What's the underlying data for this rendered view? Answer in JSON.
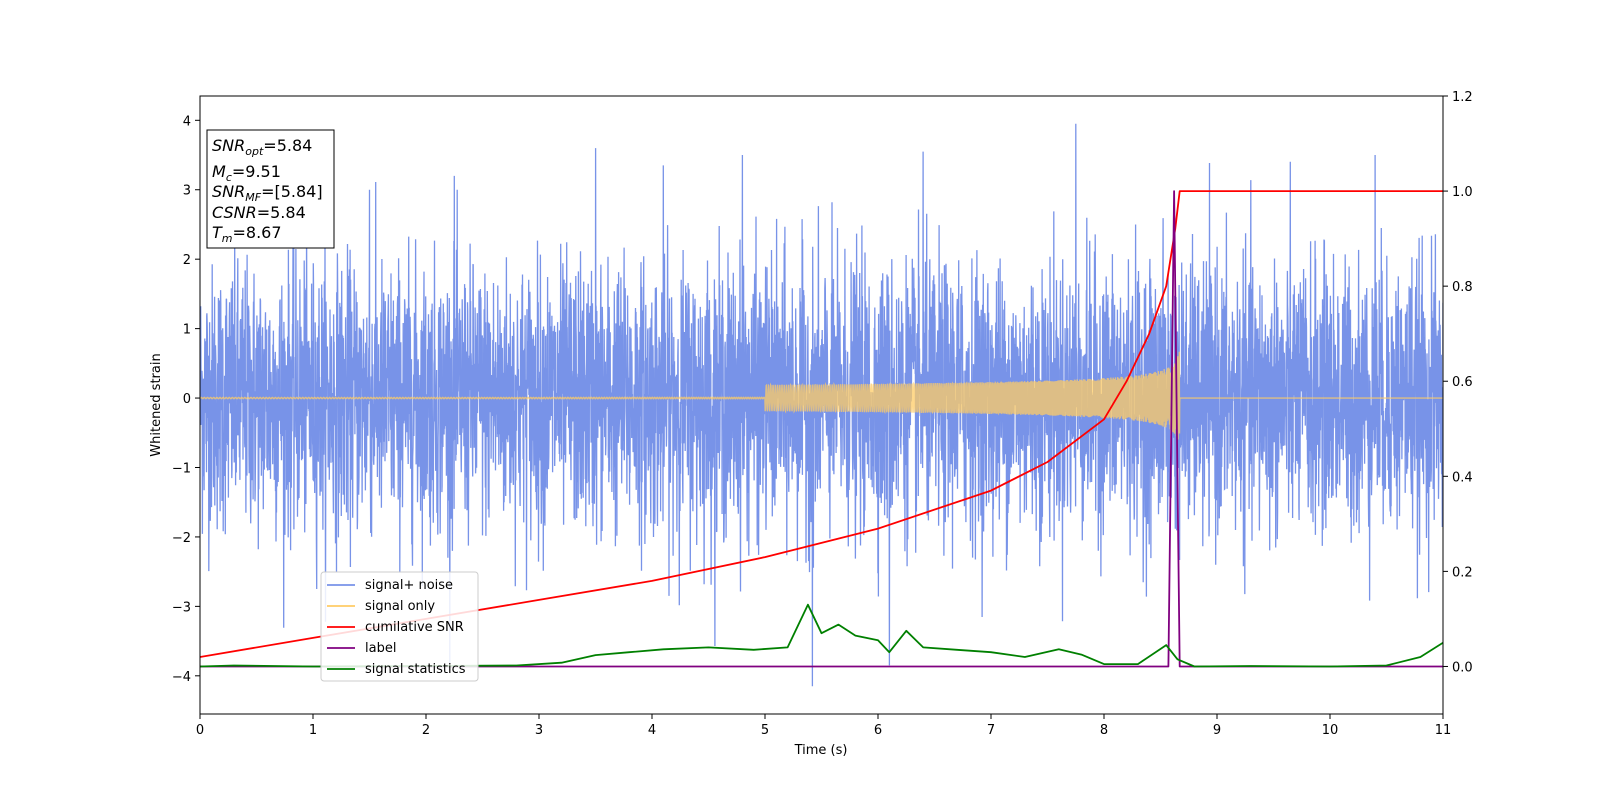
{
  "chart_data": {
    "type": "line",
    "xlabel": "Time (s)",
    "ylabel": "Whitened strain",
    "xlim": [
      0,
      11
    ],
    "ylim_left": [
      -4.55,
      4.35
    ],
    "ylim_right": [
      -0.1,
      1.2
    ],
    "x_ticks": [
      0,
      1,
      2,
      3,
      4,
      5,
      6,
      7,
      8,
      9,
      10,
      11
    ],
    "y_ticks_left": [
      -4,
      -3,
      -2,
      -1,
      0,
      1,
      2,
      3,
      4
    ],
    "y_ticks_right": [
      "0.0",
      "0.2",
      "0.4",
      "0.6",
      "0.8",
      "1.0",
      "1.2"
    ],
    "y_ticks_right_values": [
      0.0,
      0.2,
      0.4,
      0.6,
      0.8,
      1.0,
      1.2
    ],
    "legend_position": "lower-left",
    "info_box": {
      "snr_opt": "=5.84",
      "mc": "=9.51",
      "snr_mf": "=[5.84]",
      "csnr": "=5.84",
      "tm": "=8.67",
      "labels": {
        "snr_main": "SNR",
        "snr_opt_sub": "opt",
        "m_main": "M",
        "m_sub": "c",
        "snr_mf_sub": "MF",
        "csnr_main": "CSNR",
        "t_main": "T",
        "t_sub": "m"
      }
    },
    "series": [
      {
        "name": "signal+ noise",
        "color": "#7893e8",
        "axis": "left",
        "kind": "noise",
        "sigma": 0.95,
        "x_range": [
          0,
          11
        ],
        "note_peaks": [
          [
            1.5,
            3.0
          ],
          [
            2.25,
            3.2
          ],
          [
            3.5,
            3.6
          ],
          [
            4.1,
            3.35
          ],
          [
            4.8,
            3.5
          ],
          [
            6.4,
            3.55
          ],
          [
            7.75,
            3.95
          ],
          [
            10.4,
            3.5
          ],
          [
            5.42,
            -4.15
          ],
          [
            6.1,
            -3.85
          ]
        ]
      },
      {
        "name": "signal only",
        "color": "#ffcc66",
        "axis": "left",
        "kind": "chirp",
        "t_merge": 8.67,
        "amplitude_at_merge": 0.7
      },
      {
        "name": "cumilative SNR",
        "color": "#ff0000",
        "axis": "right",
        "points": [
          [
            0,
            0.02
          ],
          [
            1,
            0.06
          ],
          [
            2,
            0.1
          ],
          [
            3,
            0.14
          ],
          [
            4,
            0.18
          ],
          [
            5,
            0.23
          ],
          [
            6,
            0.29
          ],
          [
            7,
            0.37
          ],
          [
            7.5,
            0.43
          ],
          [
            8,
            0.52
          ],
          [
            8.2,
            0.6
          ],
          [
            8.4,
            0.7
          ],
          [
            8.55,
            0.8
          ],
          [
            8.63,
            0.92
          ],
          [
            8.67,
            1.0
          ],
          [
            11,
            1.0
          ]
        ]
      },
      {
        "name": "label",
        "color": "#800080",
        "axis": "right",
        "points": [
          [
            0,
            0
          ],
          [
            8.57,
            0
          ],
          [
            8.62,
            1.0
          ],
          [
            8.67,
            0
          ],
          [
            11,
            0
          ]
        ]
      },
      {
        "name": "signal statistics",
        "color": "#008000",
        "axis": "right",
        "points": [
          [
            0,
            0.0
          ],
          [
            0.3,
            0.002
          ],
          [
            1,
            0.0
          ],
          [
            2,
            0.001
          ],
          [
            2.8,
            0.002
          ],
          [
            3.2,
            0.008
          ],
          [
            3.5,
            0.024
          ],
          [
            3.8,
            0.03
          ],
          [
            4.1,
            0.036
          ],
          [
            4.5,
            0.04
          ],
          [
            4.9,
            0.035
          ],
          [
            5.2,
            0.04
          ],
          [
            5.38,
            0.13
          ],
          [
            5.5,
            0.07
          ],
          [
            5.65,
            0.088
          ],
          [
            5.8,
            0.065
          ],
          [
            6.0,
            0.055
          ],
          [
            6.1,
            0.03
          ],
          [
            6.25,
            0.075
          ],
          [
            6.4,
            0.04
          ],
          [
            6.7,
            0.035
          ],
          [
            7.0,
            0.03
          ],
          [
            7.3,
            0.02
          ],
          [
            7.6,
            0.036
          ],
          [
            7.8,
            0.025
          ],
          [
            8.0,
            0.005
          ],
          [
            8.3,
            0.005
          ],
          [
            8.55,
            0.045
          ],
          [
            8.65,
            0.015
          ],
          [
            8.8,
            0.0
          ],
          [
            9.3,
            0.001
          ],
          [
            10,
            0.0
          ],
          [
            10.5,
            0.002
          ],
          [
            10.8,
            0.02
          ],
          [
            11,
            0.05
          ]
        ]
      }
    ]
  }
}
